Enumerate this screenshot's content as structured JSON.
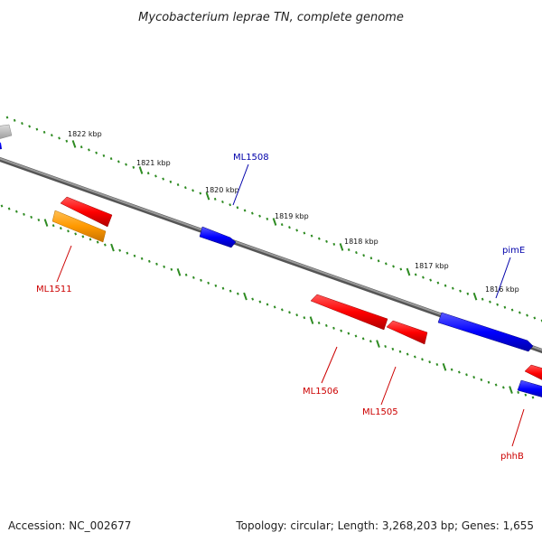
{
  "title": "Mycobacterium leprae TN, complete genome",
  "footer": {
    "accession": "Accession: NC_002677",
    "summary": "Topology: circular; Length: 3,268,203 bp; Genes: 1,655"
  },
  "ruler_labels": [
    "1822 kbp",
    "1821 kbp",
    "1820 kbp",
    "1819 kbp",
    "1818 kbp",
    "1817 kbp",
    "1816 kbp"
  ],
  "gene_labels": [
    "ML1511",
    "ML1508",
    "ML1506",
    "ML1505",
    "pimE",
    "phhB"
  ],
  "colors": {
    "backbone": "#7a7a7a",
    "ticks": "#2e8b22",
    "forward_gene": "#ff0000",
    "reverse_gene": "#0000ff",
    "other_gene": "#ff9900",
    "unknown_gene": "#bbbbbb",
    "forward_label": "#cc0000",
    "reverse_label": "#0000aa"
  }
}
